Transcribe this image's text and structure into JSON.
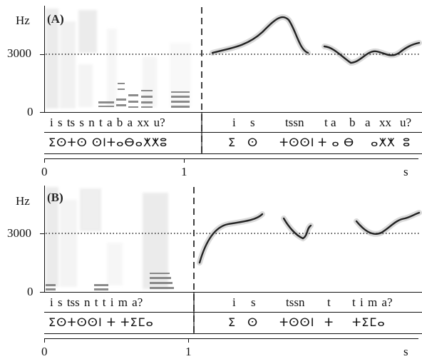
{
  "panels": [
    {
      "label": "(A)",
      "y_unit": "Hz",
      "y_tick_3000": "3000",
      "y_tick_0": "0",
      "left_segments": "i s ts   s n t a b a xx  u?",
      "right_segments": [
        "i",
        "s",
        "tssn",
        "t a",
        "b",
        "a",
        "xx",
        "u?"
      ],
      "left_tifinagh": "ⵉⵙⵜⵙ ⵙⵏⵜⴰⴱⴰⵅⵅⵓ",
      "right_tifinagh": [
        "ⵉ",
        "ⵙ",
        "ⵜⵙⵙⵏ",
        "ⵜ ⴰ",
        "ⴱ",
        "ⴰⵅⵅ",
        "ⵓ"
      ],
      "x_tick_0": "0",
      "x_tick_1": "1",
      "x_unit": "s"
    },
    {
      "label": "(B)",
      "y_unit": "Hz",
      "y_tick_3000": "3000",
      "y_tick_0": "0",
      "left_segments": "i s tss  n   t    t i m a?",
      "right_segments": [
        "i",
        "s",
        "tssn",
        "t",
        "t i m a?"
      ],
      "left_tifinagh": "ⵉⵙⵜⵙⵙⵏ ⵜ   ⵜⵉⵎⴰ",
      "right_tifinagh": [
        "ⵉ",
        "ⵙ",
        "ⵜⵙⵙⵏ",
        "ⵜ",
        "ⵜⵉⵎⴰ"
      ],
      "x_tick_0": "0",
      "x_tick_1": "1",
      "x_unit": "s"
    }
  ],
  "colors": {
    "ink": "#111111",
    "spectrogram": "#9a9a9a",
    "pitch": "#222222"
  }
}
